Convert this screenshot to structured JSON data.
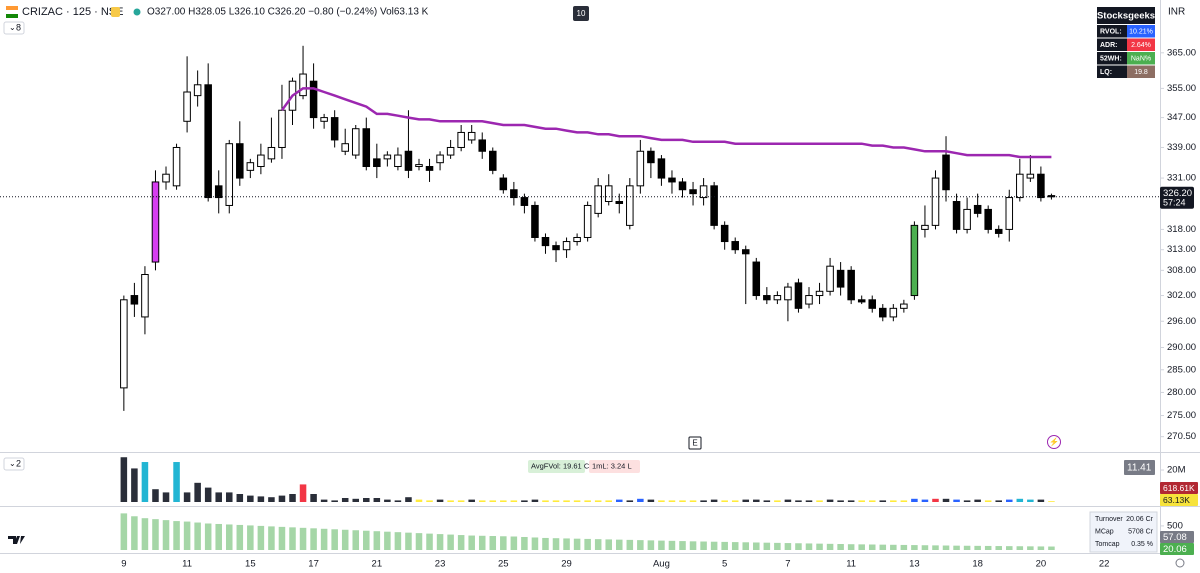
{
  "header": {
    "symbol": "CRIZAC · 125 · NSE",
    "ohlc": "O327.00 H328.05 L326.10 C326.20 −0.80 (−0.24%) Vol63.13 K",
    "interval_badge": "10",
    "currency": "INR",
    "main_collapse": "8",
    "volume_collapse": "2",
    "event_marker": "E"
  },
  "info_table": {
    "title": "Stocksgeeks",
    "rows": [
      [
        "RVOL:",
        "10.21%"
      ],
      [
        "ADR:",
        "2.64%"
      ],
      [
        "52WH:",
        "NaN%"
      ],
      [
        "LQ:",
        "19.8"
      ]
    ],
    "colors": [
      "#2962ff",
      "#f23645",
      "#4caf50",
      "#8d6e63"
    ]
  },
  "turnover_table": {
    "rows": [
      [
        "Turnover",
        "20.06 Cr"
      ],
      [
        "MCap",
        "5708 Cr"
      ],
      [
        "Tomcap",
        "0.35 %"
      ]
    ]
  },
  "chart_data": [
    {
      "type": "candlestick",
      "log": true,
      "ylim": [
        267.7,
        377.4
      ],
      "xlim": [
        -11.75,
        98.3
      ],
      "yticks": [
        {
          "value": 365,
          "label": "365.00"
        },
        {
          "value": 355,
          "label": "355.00"
        },
        {
          "value": 347,
          "label": "347.00"
        },
        {
          "value": 339,
          "label": "339.00"
        },
        {
          "value": 331,
          "label": "331.00"
        },
        {
          "value": 318,
          "label": "318.00"
        },
        {
          "value": 313,
          "label": "313.00"
        },
        {
          "value": 308,
          "label": "308.00"
        },
        {
          "value": 302,
          "label": "302.00"
        },
        {
          "value": 296,
          "label": "296.00"
        },
        {
          "value": 290,
          "label": "290.00"
        },
        {
          "value": 285,
          "label": "285.00"
        },
        {
          "value": 280,
          "label": "280.00"
        },
        {
          "value": 275,
          "label": "275.00"
        },
        {
          "value": 270.5,
          "label": "270.50"
        }
      ],
      "xticks": [
        {
          "value": 0,
          "label": "9"
        },
        {
          "value": 6,
          "label": "11"
        },
        {
          "value": 12,
          "label": "15"
        },
        {
          "value": 18,
          "label": "17"
        },
        {
          "value": 24,
          "label": "21"
        },
        {
          "value": 30,
          "label": "23"
        },
        {
          "value": 36,
          "label": "25"
        },
        {
          "value": 42,
          "label": "29"
        },
        {
          "value": 51,
          "label": "Aug"
        },
        {
          "value": 57,
          "label": "5"
        },
        {
          "value": 63,
          "label": "7"
        },
        {
          "value": 69,
          "label": "11"
        },
        {
          "value": 75,
          "label": "13"
        },
        {
          "value": 81,
          "label": "18"
        },
        {
          "value": 87,
          "label": "20"
        },
        {
          "value": 93,
          "label": "22"
        }
      ],
      "open": [
        281,
        302,
        297,
        310,
        330,
        329,
        346,
        353,
        356,
        329,
        324,
        340,
        333,
        334,
        336,
        339,
        349,
        353,
        357,
        346,
        347,
        338,
        337,
        344,
        336,
        336,
        334,
        338,
        334,
        334,
        335,
        337,
        339,
        341,
        341,
        338,
        331,
        328,
        326,
        324,
        316,
        314,
        313,
        315,
        316,
        322,
        325,
        325,
        319,
        329,
        338,
        336,
        331,
        330,
        328,
        326,
        329,
        319,
        315,
        313,
        310,
        302,
        301,
        301,
        305,
        300,
        302,
        303,
        308,
        308,
        301,
        301,
        299,
        297,
        299,
        302,
        318,
        319,
        337,
        325,
        318,
        324,
        323,
        318,
        318,
        326,
        331,
        332,
        326.5
      ],
      "high": [
        302,
        305,
        309,
        333,
        334,
        340,
        364,
        360,
        362,
        333,
        341,
        346,
        336,
        340,
        347,
        356,
        358,
        367,
        362,
        348,
        349,
        344,
        345,
        347,
        340,
        338,
        339,
        349,
        336,
        336,
        338,
        341,
        345,
        345,
        343,
        339,
        332,
        330,
        327,
        325,
        317,
        315,
        316,
        317,
        325,
        331,
        332,
        327,
        331,
        341,
        339,
        337,
        333,
        331,
        330,
        331,
        330,
        320,
        316,
        314,
        311,
        304,
        303,
        305,
        306,
        304,
        305,
        311,
        310,
        309,
        302,
        302,
        300,
        300,
        301,
        320,
        324,
        333,
        342,
        327,
        326,
        327,
        324,
        319,
        328,
        336,
        337,
        334,
        327
      ],
      "low": [
        276,
        297,
        293,
        308,
        328,
        328,
        343,
        350,
        325,
        322,
        322,
        329,
        331,
        332,
        335,
        336,
        345,
        352,
        344,
        344,
        339,
        337,
        336,
        333,
        331,
        334,
        333,
        331,
        333,
        330,
        333,
        336,
        338,
        340,
        336,
        332,
        327,
        324,
        322,
        315,
        312,
        310,
        311,
        314,
        315,
        321,
        324,
        322,
        318,
        327,
        331,
        329,
        327,
        326,
        324,
        324,
        318,
        313,
        312,
        300,
        301,
        300,
        300,
        296,
        298,
        299,
        300,
        302,
        302,
        300,
        300,
        298,
        296,
        296,
        298,
        301,
        316,
        318,
        325,
        317,
        317,
        321,
        317,
        316,
        315,
        325,
        330,
        325,
        325.5
      ],
      "close": [
        301,
        300,
        307,
        330,
        332,
        339,
        354,
        356,
        326,
        326,
        340,
        331,
        335,
        337,
        339,
        349,
        357,
        359,
        347,
        347,
        341,
        340,
        344,
        334,
        334,
        337,
        337,
        333,
        334.5,
        333,
        337,
        339,
        343,
        343,
        338,
        333,
        328,
        326,
        324,
        316,
        314,
        313,
        315,
        316,
        324,
        329,
        329,
        324.5,
        329,
        338,
        335,
        331,
        330,
        328,
        327,
        329,
        319,
        315,
        313,
        312,
        302,
        301,
        302,
        304,
        299,
        302,
        303,
        309,
        304,
        301,
        300.5,
        299,
        297,
        299,
        300,
        319,
        319,
        331,
        328,
        318,
        323,
        322,
        318,
        317,
        326,
        332,
        332,
        326,
        326.2
      ],
      "up_color": "#ffffff",
      "down_color": "#000000",
      "highlight_colors": {
        "3": "#d63df0",
        "75": "#4caf50"
      },
      "ma": {
        "color": "#9c27b0",
        "values": [
          null,
          null,
          null,
          null,
          null,
          null,
          null,
          null,
          null,
          null,
          null,
          null,
          null,
          null,
          null,
          349,
          353,
          355,
          355,
          354,
          353,
          352,
          351,
          350,
          348,
          348,
          347.5,
          347,
          346.5,
          346.5,
          346,
          346,
          346,
          346,
          346,
          345.5,
          345,
          345,
          345,
          344.5,
          344,
          344,
          343.5,
          343,
          343,
          342.5,
          342.5,
          342,
          342,
          342,
          341.5,
          341,
          341,
          341,
          340.5,
          340.5,
          340.5,
          340.5,
          340,
          340,
          340,
          340,
          340,
          340,
          340,
          340,
          340,
          340,
          340,
          340,
          340,
          339.5,
          339.5,
          339,
          339,
          338.5,
          338,
          338,
          338,
          337.5,
          337,
          337,
          337,
          337,
          337,
          336.5,
          336.5,
          336.5,
          336.5
        ]
      },
      "last_price": {
        "value": 326.2,
        "label": "326.20",
        "countdown": "57:24"
      }
    },
    {
      "type": "bar",
      "ylim": [
        0,
        29.4
      ],
      "yticks": [
        {
          "value": 20,
          "label": "20M"
        }
      ],
      "values": [
        28,
        21,
        25,
        8,
        6,
        25,
        6,
        12,
        9,
        6,
        6,
        5,
        4,
        3.5,
        3,
        4,
        5,
        11,
        5,
        1.5,
        1,
        2.5,
        2,
        2.5,
        2.5,
        1.5,
        1,
        3,
        1.5,
        1,
        1.5,
        1,
        1,
        1.5,
        1,
        1,
        1,
        1,
        1,
        1.5,
        1,
        1,
        1,
        1,
        1,
        1,
        1,
        1.5,
        1,
        2,
        1.5,
        1,
        1,
        1,
        1,
        1,
        1.5,
        1,
        1,
        1.5,
        1.5,
        1,
        1,
        1.5,
        1,
        1,
        1,
        1.5,
        1,
        1,
        1,
        1,
        1,
        1,
        1,
        2,
        1.5,
        2,
        2,
        1.5,
        1,
        1.5,
        1,
        1,
        1.5,
        2,
        1.5,
        1.5,
        0.5
      ],
      "colors": [
        "#2a2e39",
        "#2a2e39",
        "#22b5d3",
        "#2a2e39",
        "#2a2e39",
        "#22b5d3",
        "#2a2e39",
        "#2a2e39",
        "#2a2e39",
        "#2a2e39",
        "#2a2e39",
        "#2a2e39",
        "#2a2e39",
        "#2a2e39",
        "#2a2e39",
        "#2a2e39",
        "#2a2e39",
        "#f23645",
        "#2a2e39",
        "#2a2e39",
        "#2a2e39",
        "#2a2e39",
        "#2a2e39",
        "#2a2e39",
        "#2a2e39",
        "#2a2e39",
        "#2a2e39",
        "#2a2e39",
        "#ffeb3b",
        "#ffeb3b",
        "#2a2e39",
        "#ffeb3b",
        "#ffeb3b",
        "#2a2e39",
        "#ffeb3b",
        "#ffeb3b",
        "#ffeb3b",
        "#ffeb3b",
        "#2a2e39",
        "#2a2e39",
        "#ffeb3b",
        "#ffeb3b",
        "#ffeb3b",
        "#ffeb3b",
        "#ffeb3b",
        "#ffeb3b",
        "#ffeb3b",
        "#2962ff",
        "#2a2e39",
        "#2962ff",
        "#2a2e39",
        "#ffeb3b",
        "#ffeb3b",
        "#ffeb3b",
        "#ffeb3b",
        "#2a2e39",
        "#2a2e39",
        "#ffeb3b",
        "#ffeb3b",
        "#2a2e39",
        "#2a2e39",
        "#2a2e39",
        "#ffeb3b",
        "#2a2e39",
        "#2a2e39",
        "#2a2e39",
        "#ffeb3b",
        "#2a2e39",
        "#2a2e39",
        "#2a2e39",
        "#ffeb3b",
        "#ffeb3b",
        "#2a2e39",
        "#ffeb3b",
        "#ffeb3b",
        "#2962ff",
        "#2962ff",
        "#f23645",
        "#2a2e39",
        "#2962ff",
        "#2a2e39",
        "#2a2e39",
        "#ffeb3b",
        "#2a2e39",
        "#2962ff",
        "#22b5d3",
        "#22b5d3",
        "#2a2e39",
        "#ffeb3b"
      ],
      "annotations": [
        "AvgFVol: 19.61 Cr",
        "1mL: 3.24 L"
      ],
      "badges": [
        "11.41",
        "618.61K",
        "63.13K"
      ]
    },
    {
      "type": "bar",
      "ylim": [
        0,
        830
      ],
      "yticks": [
        500
      ],
      "color": "#a5d6a7",
      "values": [
        760,
        700,
        660,
        640,
        620,
        600,
        590,
        570,
        550,
        540,
        530,
        520,
        510,
        500,
        490,
        480,
        470,
        460,
        450,
        440,
        430,
        420,
        410,
        400,
        390,
        380,
        370,
        360,
        350,
        340,
        330,
        320,
        310,
        300,
        295,
        290,
        285,
        280,
        270,
        260,
        250,
        245,
        240,
        235,
        230,
        225,
        220,
        215,
        210,
        205,
        200,
        195,
        190,
        185,
        180,
        176,
        172,
        168,
        164,
        160,
        156,
        152,
        148,
        144,
        140,
        136,
        132,
        128,
        124,
        120,
        117,
        114,
        111,
        108,
        105,
        102,
        99,
        96,
        93,
        90,
        88,
        86,
        84,
        82,
        80,
        78,
        76,
        74,
        72
      ],
      "badges": [
        "57.08",
        "20.06"
      ]
    }
  ]
}
